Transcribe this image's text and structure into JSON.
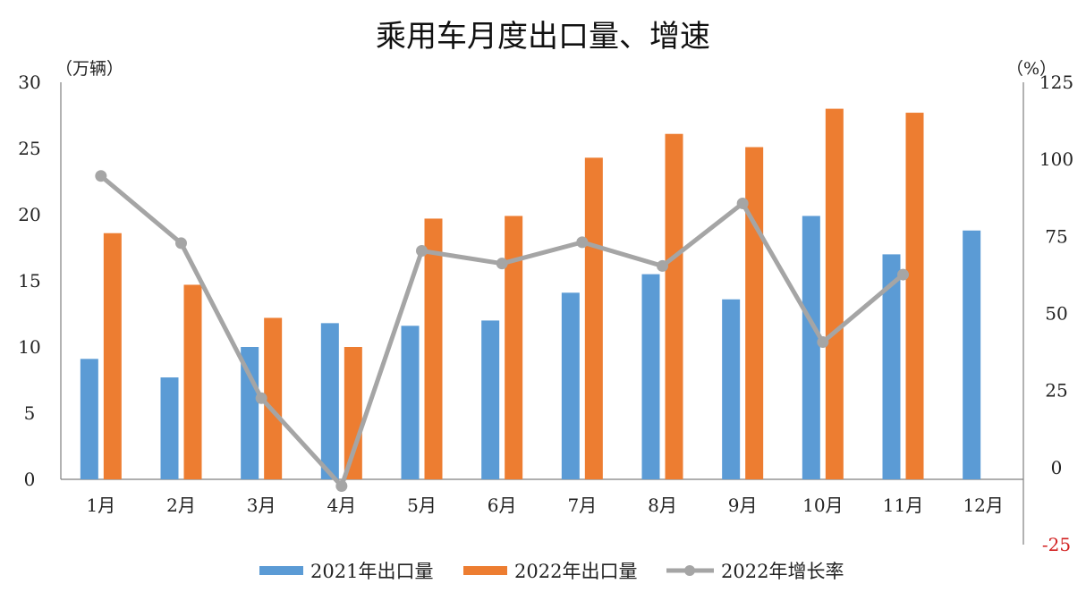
{
  "chart_data": {
    "type": "bar",
    "title": "乘用车月度出口量、增速",
    "y_left_unit": "（万辆）",
    "y_right_unit": "（%）",
    "categories": [
      "1月",
      "2月",
      "3月",
      "4月",
      "5月",
      "6月",
      "7月",
      "8月",
      "9月",
      "10月",
      "11月",
      "12月"
    ],
    "y_left_ticks": [
      "0",
      "5",
      "10",
      "15",
      "20",
      "25",
      "30"
    ],
    "y_right_ticks": [
      "-25",
      "0",
      "25",
      "50",
      "75",
      "100",
      "125"
    ],
    "y_left_lim": [
      0,
      30
    ],
    "y_right_lim": [
      -25,
      125
    ],
    "series": [
      {
        "name": "2021年出口量",
        "kind": "bar",
        "axis": "left",
        "color": "#5b9bd5",
        "values": [
          9.1,
          7.7,
          10.0,
          11.8,
          11.6,
          12.0,
          14.1,
          15.5,
          13.6,
          19.9,
          17.0,
          18.8
        ]
      },
      {
        "name": "2022年出口量",
        "kind": "bar",
        "axis": "left",
        "color": "#ed7d31",
        "values": [
          18.6,
          14.7,
          12.2,
          10.0,
          19.7,
          19.9,
          24.3,
          26.1,
          25.1,
          28.0,
          27.7,
          null
        ]
      },
      {
        "name": "2022年增长率",
        "kind": "line",
        "axis": "right",
        "color": "#a5a5a5",
        "values": [
          94.6,
          72.8,
          22.5,
          -6.0,
          70.3,
          66.2,
          73.1,
          65.4,
          85.7,
          40.7,
          62.6,
          null
        ]
      }
    ],
    "legend_position": "bottom"
  }
}
